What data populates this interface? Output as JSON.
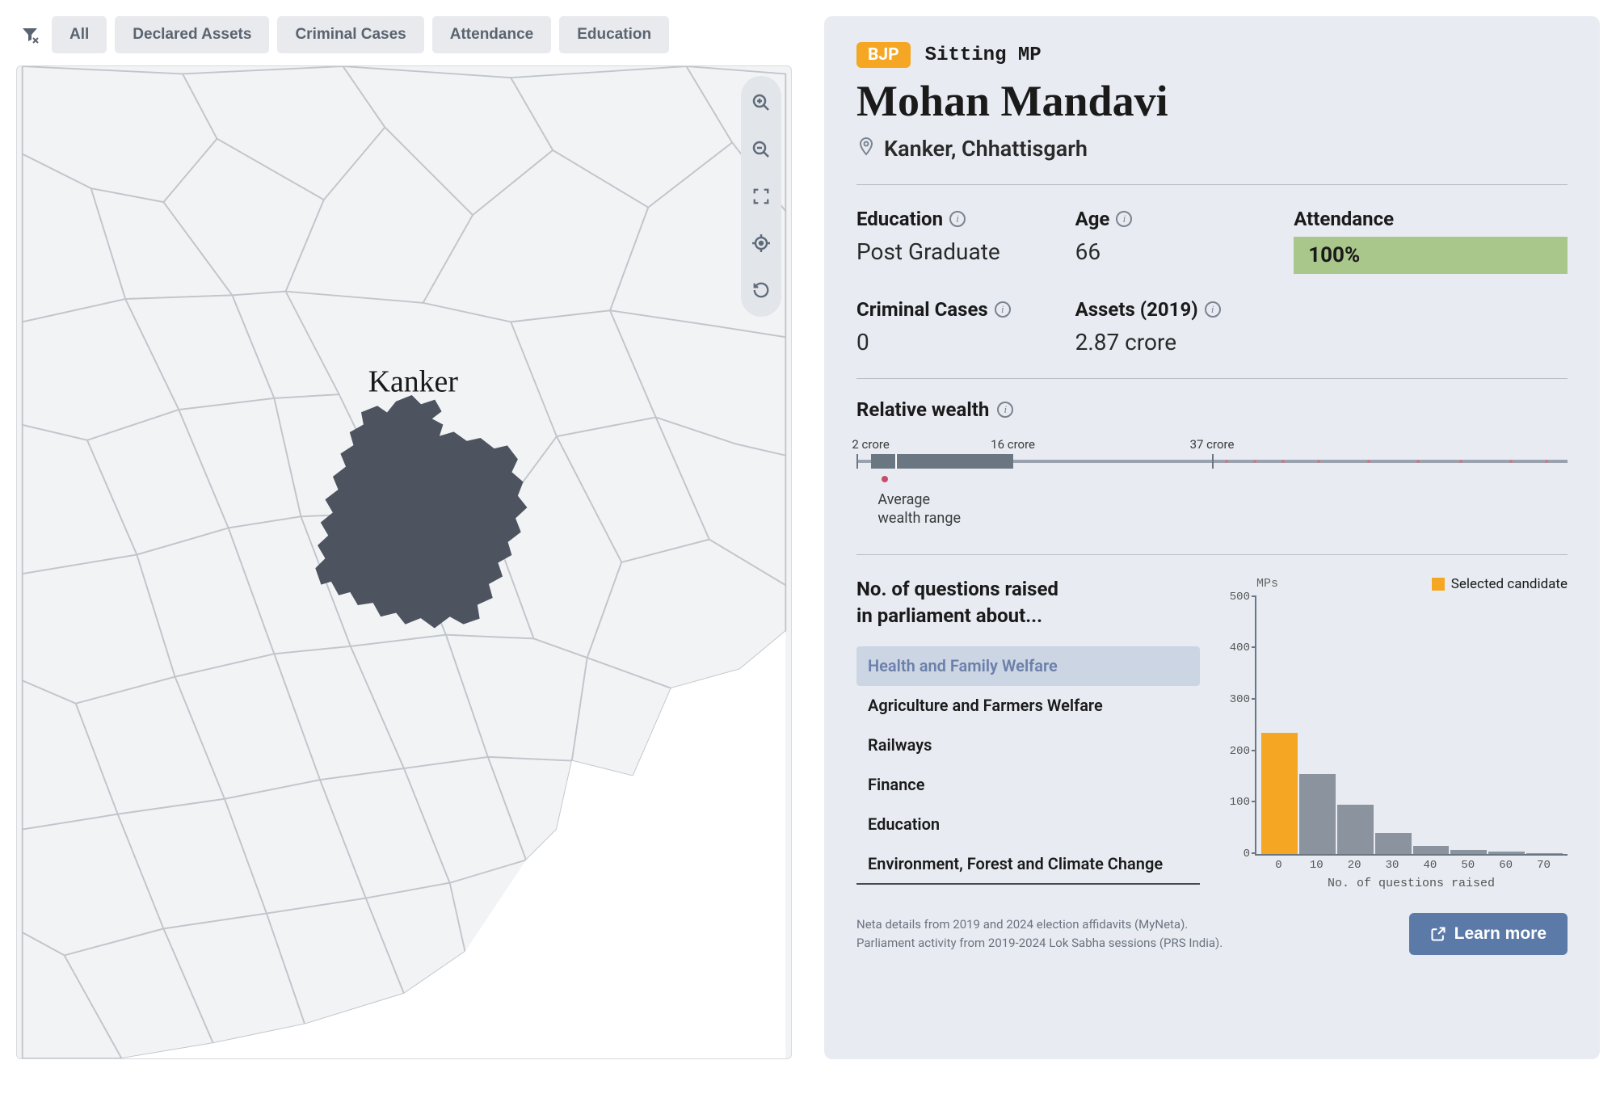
{
  "filters": {
    "items": [
      "All",
      "Declared Assets",
      "Criminal Cases",
      "Attendance",
      "Education"
    ]
  },
  "map": {
    "highlighted_label": "Kanker",
    "highlight_fill": "#4d5460",
    "base_fill": "#f2f3f5",
    "stroke": "#c1c6cc"
  },
  "profile": {
    "party": "BJP",
    "status": "Sitting MP",
    "name": "Mohan Mandavi",
    "location": "Kanker, Chhattisgarh",
    "education_label": "Education",
    "education_value": "Post Graduate",
    "age_label": "Age",
    "age_value": "66",
    "attendance_label": "Attendance",
    "attendance_value": "100%",
    "attendance_color": "#a9c78a",
    "cases_label": "Criminal Cases",
    "cases_value": "0",
    "assets_label": "Assets (2019)",
    "assets_value": "2.87 crore"
  },
  "wealth": {
    "title": "Relative wealth",
    "ticks": [
      {
        "pos_pct": 2,
        "label": "2 crore"
      },
      {
        "pos_pct": 22,
        "label": "16 crore"
      },
      {
        "pos_pct": 50,
        "label": "37 crore"
      }
    ],
    "box_left_pct": 2,
    "box_right_pct": 22,
    "median_pct": 5.5,
    "candidate_dot_pct": 4,
    "avg_label_line1": "Average",
    "avg_label_line2": "wealth range",
    "box_color": "#6b7683",
    "line_color": "#9aa2ad",
    "dot_color": "#c94b6b"
  },
  "questions": {
    "title_line1": "No. of questions raised",
    "title_line2": "in parliament about...",
    "topics": [
      "Health and Family Welfare",
      "Agriculture and Farmers Welfare",
      "Railways",
      "Finance",
      "Education",
      "Environment, Forest and Climate Change"
    ],
    "selected_index": 0,
    "chart": {
      "type": "histogram",
      "y_max": 500,
      "y_ticks": [
        0,
        100,
        200,
        300,
        400,
        500
      ],
      "x_ticks": [
        0,
        10,
        20,
        30,
        40,
        50,
        60,
        70
      ],
      "x_title": "No. of questions raised",
      "mps_label": "MPs",
      "legend_label": "Selected candidate",
      "bars": [
        {
          "value": 235,
          "color": "#f5a623"
        },
        {
          "value": 155,
          "color": "#8b949e"
        },
        {
          "value": 95,
          "color": "#8b949e"
        },
        {
          "value": 40,
          "color": "#8b949e"
        },
        {
          "value": 15,
          "color": "#8b949e"
        },
        {
          "value": 7,
          "color": "#8b949e"
        },
        {
          "value": 4,
          "color": "#8b949e"
        },
        {
          "value": 2,
          "color": "#8b949e"
        }
      ],
      "bar_default_color": "#8b949e",
      "highlight_color": "#f5a623"
    }
  },
  "footer": {
    "line1": "Neta details from 2019 and 2024 election affidavits (MyNeta).",
    "line2": "Parliament activity from 2019-2024 Lok Sabha sessions (PRS India).",
    "learn_more": "Learn more"
  }
}
